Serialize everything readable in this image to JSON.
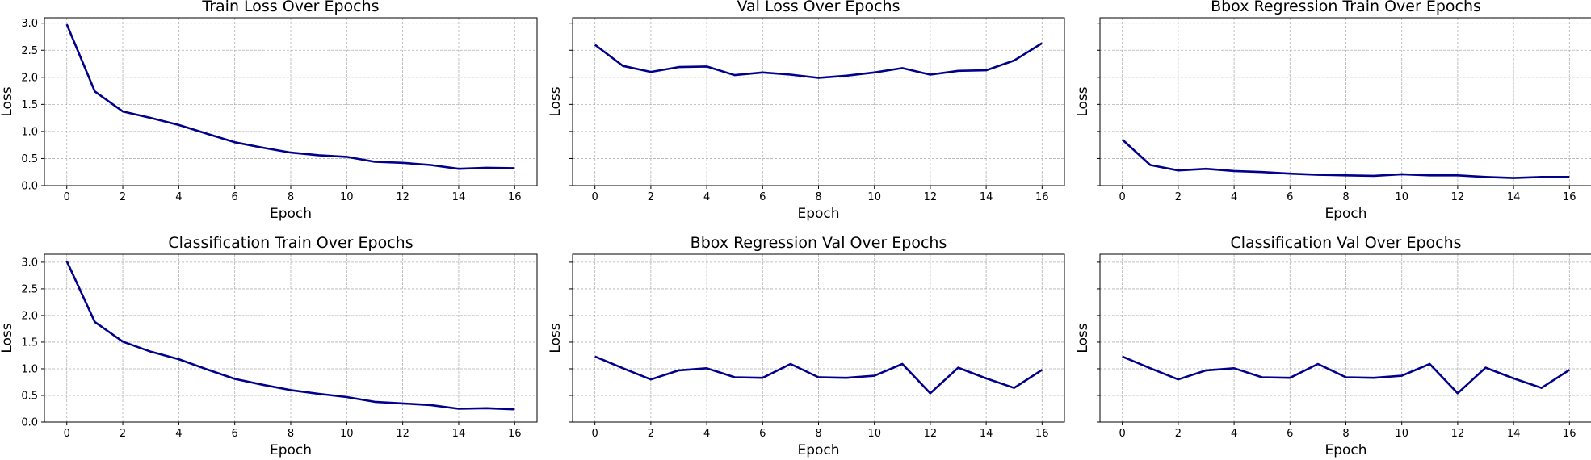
{
  "chart_data": [
    {
      "type": "line",
      "title": "Train Loss Over Epochs",
      "xlabel": "Epoch",
      "ylabel": "Loss",
      "x": [
        0,
        1,
        2,
        3,
        4,
        5,
        6,
        7,
        8,
        9,
        10,
        11,
        12,
        13,
        14,
        15,
        16
      ],
      "y": [
        2.98,
        1.74,
        1.37,
        1.25,
        1.12,
        0.96,
        0.8,
        0.7,
        0.61,
        0.56,
        0.53,
        0.44,
        0.42,
        0.38,
        0.31,
        0.33,
        0.32
      ],
      "xlim": [
        -0.8,
        16.8
      ],
      "ylim": [
        0,
        3.1
      ],
      "xticks": [
        0,
        2,
        4,
        6,
        8,
        10,
        12,
        14,
        16
      ],
      "yticks": [
        0.0,
        0.5,
        1.0,
        1.5,
        2.0,
        2.5,
        3.0
      ],
      "grid": true,
      "line_color": "#00008b"
    },
    {
      "type": "line",
      "title": "Val Loss Over Epochs",
      "xlabel": "Epoch",
      "ylabel": "Loss",
      "x": [
        0,
        1,
        2,
        3,
        4,
        5,
        6,
        7,
        8,
        9,
        10,
        11,
        12,
        13,
        14,
        15,
        16
      ],
      "y": [
        2.6,
        2.21,
        2.1,
        2.19,
        2.2,
        2.04,
        2.09,
        2.05,
        1.99,
        2.03,
        2.09,
        2.17,
        2.05,
        2.12,
        2.13,
        2.31,
        2.63
      ],
      "xlim": [
        -0.8,
        16.8
      ],
      "ylim": [
        0,
        3.1
      ],
      "xticks": [
        0,
        2,
        4,
        6,
        8,
        10,
        12,
        14,
        16
      ],
      "yticks": [
        0.0,
        0.5,
        1.0,
        1.5,
        2.0,
        2.5,
        3.0
      ],
      "grid": true,
      "line_color": "#00008b"
    },
    {
      "type": "line",
      "title": "Bbox Regression Train Over Epochs",
      "xlabel": "Epoch",
      "ylabel": "Loss",
      "x": [
        0,
        1,
        2,
        3,
        4,
        5,
        6,
        7,
        8,
        9,
        10,
        11,
        12,
        13,
        14,
        15,
        16
      ],
      "y": [
        0.85,
        0.38,
        0.28,
        0.31,
        0.27,
        0.25,
        0.22,
        0.2,
        0.19,
        0.18,
        0.21,
        0.19,
        0.19,
        0.16,
        0.14,
        0.16,
        0.16
      ],
      "xlim": [
        -0.8,
        16.8
      ],
      "ylim": [
        0,
        3.1
      ],
      "xticks": [
        0,
        2,
        4,
        6,
        8,
        10,
        12,
        14,
        16
      ],
      "yticks": [
        0.0,
        0.5,
        1.0,
        1.5,
        2.0,
        2.5,
        3.0
      ],
      "grid": true,
      "line_color": "#00008b"
    },
    {
      "type": "line",
      "title": "Classification Train Over Epochs",
      "xlabel": "Epoch",
      "ylabel": "Loss",
      "x": [
        0,
        1,
        2,
        3,
        4,
        5,
        6,
        7,
        8,
        9,
        10,
        11,
        12,
        13,
        14,
        15,
        16
      ],
      "y": [
        3.02,
        1.88,
        1.51,
        1.32,
        1.18,
        0.99,
        0.81,
        0.7,
        0.6,
        0.53,
        0.47,
        0.38,
        0.35,
        0.32,
        0.25,
        0.26,
        0.24
      ],
      "xlim": [
        -0.8,
        16.8
      ],
      "ylim": [
        0,
        3.15
      ],
      "xticks": [
        0,
        2,
        4,
        6,
        8,
        10,
        12,
        14,
        16
      ],
      "yticks": [
        0.0,
        0.5,
        1.0,
        1.5,
        2.0,
        2.5,
        3.0
      ],
      "grid": true,
      "line_color": "#00008b"
    },
    {
      "type": "line",
      "title": "Bbox Regression Val Over Epochs",
      "xlabel": "Epoch",
      "ylabel": "Loss",
      "x": [
        0,
        1,
        2,
        3,
        4,
        5,
        6,
        7,
        8,
        9,
        10,
        11,
        12,
        13,
        14,
        15,
        16
      ],
      "y": [
        1.23,
        1.01,
        0.8,
        0.97,
        1.01,
        0.84,
        0.83,
        1.09,
        0.84,
        0.83,
        0.87,
        1.09,
        0.54,
        1.02,
        0.82,
        0.64,
        0.98
      ],
      "xlim": [
        -0.8,
        16.8
      ],
      "ylim": [
        0,
        3.15
      ],
      "xticks": [
        0,
        2,
        4,
        6,
        8,
        10,
        12,
        14,
        16
      ],
      "yticks": [
        0.0,
        0.5,
        1.0,
        1.5,
        2.0,
        2.5,
        3.0
      ],
      "grid": true,
      "line_color": "#00008b"
    },
    {
      "type": "line",
      "title": "Classification Val Over Epochs",
      "xlabel": "Epoch",
      "ylabel": "Loss",
      "x": [
        0,
        1,
        2,
        3,
        4,
        5,
        6,
        7,
        8,
        9,
        10,
        11,
        12,
        13,
        14,
        15,
        16
      ],
      "y": [
        1.23,
        1.01,
        0.8,
        0.97,
        1.01,
        0.84,
        0.83,
        1.09,
        0.84,
        0.83,
        0.87,
        1.09,
        0.54,
        1.02,
        0.82,
        0.64,
        0.98
      ],
      "xlim": [
        -0.8,
        16.8
      ],
      "ylim": [
        0,
        3.15
      ],
      "xticks": [
        0,
        2,
        4,
        6,
        8,
        10,
        12,
        14,
        16
      ],
      "yticks": [
        0.0,
        0.5,
        1.0,
        1.5,
        2.0,
        2.5,
        3.0
      ],
      "grid": true,
      "line_color": "#00008b"
    }
  ]
}
